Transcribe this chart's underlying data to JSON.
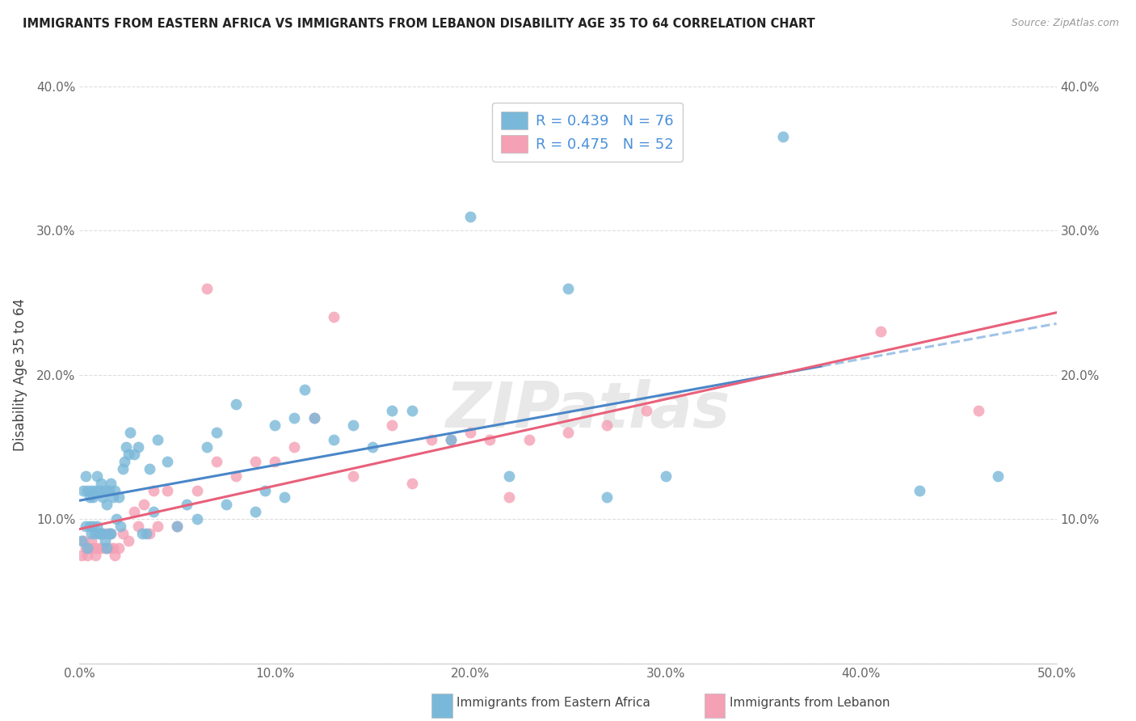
{
  "title": "IMMIGRANTS FROM EASTERN AFRICA VS IMMIGRANTS FROM LEBANON DISABILITY AGE 35 TO 64 CORRELATION CHART",
  "source": "Source: ZipAtlas.com",
  "ylabel_label": "Disability Age 35 to 64",
  "x_min": 0.0,
  "x_max": 0.5,
  "y_min": 0.0,
  "y_max": 0.4,
  "x_ticks": [
    0.0,
    0.1,
    0.2,
    0.3,
    0.4,
    0.5
  ],
  "x_tick_labels": [
    "0.0%",
    "10.0%",
    "20.0%",
    "30.0%",
    "40.0%",
    "50.0%"
  ],
  "y_ticks": [
    0.0,
    0.1,
    0.2,
    0.3,
    0.4
  ],
  "y_tick_labels_left": [
    "0.0%",
    "10.0%",
    "20.0%",
    "30.0%",
    "40.0%"
  ],
  "y_tick_labels_right": [
    "",
    "10.0%",
    "20.0%",
    "30.0%",
    "40.0%"
  ],
  "R_blue": 0.439,
  "N_blue": 76,
  "R_pink": 0.475,
  "N_pink": 52,
  "color_blue": "#7ab8d9",
  "color_pink": "#f4a0b5",
  "line_color_blue": "#4a86c8",
  "line_color_pink": "#e8607a",
  "line_color_blue_ext": "#a0c4e8",
  "watermark": "ZIPatlas",
  "legend_R_color": "#4a90d9",
  "legend_N_color": "#4a90d9",
  "blue_x": [
    0.001,
    0.002,
    0.003,
    0.003,
    0.004,
    0.004,
    0.005,
    0.005,
    0.006,
    0.006,
    0.007,
    0.007,
    0.008,
    0.008,
    0.009,
    0.009,
    0.01,
    0.01,
    0.011,
    0.011,
    0.012,
    0.012,
    0.013,
    0.013,
    0.014,
    0.014,
    0.015,
    0.015,
    0.016,
    0.016,
    0.017,
    0.018,
    0.019,
    0.02,
    0.021,
    0.022,
    0.023,
    0.024,
    0.025,
    0.026,
    0.028,
    0.03,
    0.032,
    0.034,
    0.036,
    0.038,
    0.04,
    0.045,
    0.05,
    0.055,
    0.06,
    0.065,
    0.07,
    0.075,
    0.08,
    0.09,
    0.095,
    0.1,
    0.105,
    0.11,
    0.115,
    0.12,
    0.13,
    0.14,
    0.15,
    0.16,
    0.17,
    0.19,
    0.2,
    0.22,
    0.25,
    0.27,
    0.3,
    0.36,
    0.43,
    0.47
  ],
  "blue_y": [
    0.085,
    0.12,
    0.095,
    0.13,
    0.08,
    0.12,
    0.095,
    0.115,
    0.09,
    0.12,
    0.095,
    0.115,
    0.09,
    0.12,
    0.095,
    0.13,
    0.09,
    0.12,
    0.09,
    0.125,
    0.09,
    0.115,
    0.085,
    0.12,
    0.08,
    0.11,
    0.09,
    0.12,
    0.09,
    0.125,
    0.115,
    0.12,
    0.1,
    0.115,
    0.095,
    0.135,
    0.14,
    0.15,
    0.145,
    0.16,
    0.145,
    0.15,
    0.09,
    0.09,
    0.135,
    0.105,
    0.155,
    0.14,
    0.095,
    0.11,
    0.1,
    0.15,
    0.16,
    0.11,
    0.18,
    0.105,
    0.12,
    0.165,
    0.115,
    0.17,
    0.19,
    0.17,
    0.155,
    0.165,
    0.15,
    0.175,
    0.175,
    0.155,
    0.31,
    0.13,
    0.26,
    0.115,
    0.13,
    0.365,
    0.12,
    0.13
  ],
  "pink_x": [
    0.001,
    0.002,
    0.003,
    0.004,
    0.005,
    0.006,
    0.007,
    0.008,
    0.009,
    0.01,
    0.011,
    0.012,
    0.013,
    0.014,
    0.015,
    0.016,
    0.017,
    0.018,
    0.02,
    0.022,
    0.025,
    0.028,
    0.03,
    0.033,
    0.036,
    0.038,
    0.04,
    0.045,
    0.05,
    0.06,
    0.065,
    0.07,
    0.08,
    0.09,
    0.1,
    0.11,
    0.12,
    0.13,
    0.14,
    0.16,
    0.17,
    0.18,
    0.19,
    0.2,
    0.21,
    0.22,
    0.23,
    0.25,
    0.27,
    0.29,
    0.41,
    0.46
  ],
  "pink_y": [
    0.075,
    0.085,
    0.08,
    0.075,
    0.08,
    0.085,
    0.08,
    0.075,
    0.08,
    0.09,
    0.08,
    0.09,
    0.08,
    0.09,
    0.08,
    0.09,
    0.08,
    0.075,
    0.08,
    0.09,
    0.085,
    0.105,
    0.095,
    0.11,
    0.09,
    0.12,
    0.095,
    0.12,
    0.095,
    0.12,
    0.26,
    0.14,
    0.13,
    0.14,
    0.14,
    0.15,
    0.17,
    0.24,
    0.13,
    0.165,
    0.125,
    0.155,
    0.155,
    0.16,
    0.155,
    0.115,
    0.155,
    0.16,
    0.165,
    0.175,
    0.23,
    0.175
  ]
}
